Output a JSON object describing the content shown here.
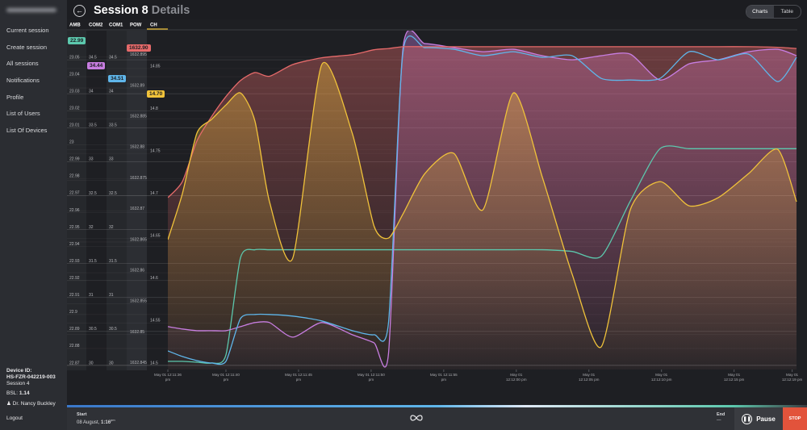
{
  "sidebar": {
    "menu": [
      "Current session",
      "Create session",
      "All sessions",
      "Notifications",
      "Profile",
      "List of Users",
      "List Of Devices"
    ],
    "device_label": "Device ID:",
    "device_id": "HS-FZR-042219-003",
    "session": "Session 4",
    "bsl_label": "BSL:",
    "bsl_value": "1.14",
    "user": "Dr. Nancy Buckley",
    "logout": "Logout"
  },
  "header": {
    "title": "Session 8",
    "subtitle": "Details",
    "tabs": [
      "Charts",
      "Table"
    ]
  },
  "chart_data": {
    "type": "line",
    "xlim": [
      36,
      79.3
    ],
    "xticks": [
      {
        "value": 36,
        "label": "May 01 12:11:36 pm"
      },
      {
        "value": 40,
        "label": "May 01 12:11:40 pm"
      },
      {
        "value": 45,
        "label": "May 01 12:11:45 pm"
      },
      {
        "value": 50,
        "label": "May 01 12:11:50 pm"
      },
      {
        "value": 55,
        "label": "May 01 12:11:55 pm"
      },
      {
        "value": 60,
        "label": "May 01 12:12:00 pm"
      },
      {
        "value": 65,
        "label": "May 01 12:12:05 pm"
      },
      {
        "value": 70,
        "label": "May 01 12:12:10 pm"
      },
      {
        "value": 75,
        "label": "May 01 12:12:15 pm"
      },
      {
        "value": 79,
        "label": "May 01 12:12:19 pm"
      }
    ],
    "x": [
      36,
      37,
      38,
      39,
      40,
      41,
      42,
      43,
      44.6,
      46.6,
      48.7,
      50.2,
      51.2,
      52.2,
      53.7,
      55.7,
      57.7,
      59.8,
      61.8,
      63.85,
      65.85,
      67.85,
      69.9,
      71.9,
      73.9,
      76,
      78,
      79.3
    ],
    "series": [
      {
        "name": "AMB",
        "color": "#5cc8ad",
        "current": 22.99,
        "ylim": [
          22.8676,
          23.0671
        ],
        "yticks": [
          23.05,
          23.04,
          23.03,
          23.02,
          23.01,
          23,
          22.99,
          22.98,
          22.97,
          22.96,
          22.95,
          22.94,
          22.93,
          22.92,
          22.91,
          22.9,
          22.89,
          22.88,
          22.87
        ],
        "values": [
          22.8724,
          22.8724,
          22.8719,
          22.8714,
          22.8762,
          22.9333,
          22.9381,
          22.9381,
          22.9381,
          22.9381,
          22.9381,
          22.9381,
          22.9381,
          22.9381,
          22.9381,
          22.9381,
          22.9381,
          22.9381,
          22.9381,
          22.9371,
          22.9343,
          22.9667,
          22.9976,
          22.9976,
          22.9976,
          22.9976,
          22.9976,
          22.9976
        ]
      },
      {
        "name": "COM2",
        "color": "#c77de0",
        "current": 34.44,
        "ylim": [
          29.94,
          34.929
        ],
        "yticks": [
          34.5,
          34,
          33.5,
          33,
          32.5,
          32,
          31.5,
          31,
          30.5,
          30
        ],
        "values": [
          30.571,
          30.536,
          30.512,
          30.512,
          30.512,
          30.571,
          30.631,
          30.631,
          30.417,
          30.631,
          30.452,
          30.333,
          30.179,
          34.679,
          34.738,
          34.679,
          34.619,
          34.655,
          34.56,
          34.5,
          34.56,
          34.583,
          34.202,
          34.44,
          34.5,
          34.619,
          34.655,
          34.56
        ]
      },
      {
        "name": "COM1",
        "color": "#5fb6ea",
        "current": 34.51,
        "ylim": [
          29.94,
          34.929
        ],
        "yticks": [
          34.5,
          34,
          33.5,
          33,
          32.5,
          32,
          31.5,
          31,
          30.5,
          30
        ],
        "values": [
          30.214,
          30.131,
          30.071,
          30.036,
          30.06,
          30.69,
          30.75,
          30.75,
          30.726,
          30.655,
          30.512,
          30.452,
          30.631,
          34.619,
          34.679,
          34.655,
          34.56,
          34.619,
          34.536,
          34.56,
          34.226,
          34.202,
          34.226,
          34.619,
          34.5,
          34.583,
          34.179,
          34.536
        ]
      },
      {
        "name": "POW",
        "color": "#e66a6a",
        "current": {
          "value": 1632.9,
          "label": "1632.90"
        },
        "ylim": [
          1632.8443,
          1632.8993
        ],
        "yticks": [
          1632.895,
          1632.89,
          1632.885,
          1632.88,
          1632.875,
          1632.87,
          1632.865,
          1632.86,
          1632.855,
          1632.85,
          1632.845
        ],
        "values": [
          1632.8722,
          1632.8748,
          1632.8814,
          1632.8853,
          1632.8886,
          1632.8912,
          1632.8925,
          1632.8919,
          1632.8938,
          1632.8949,
          1632.8954,
          1632.8962,
          1632.8964,
          1632.8967,
          1632.8967,
          1632.8967,
          1632.8967,
          1632.8967,
          1632.8967,
          1632.8967,
          1632.8967,
          1632.8967,
          1632.8967,
          1632.8967,
          1632.8967,
          1632.8967,
          1632.8966,
          1632.8964
        ]
      },
      {
        "name": "CH",
        "color": "#f0c23a",
        "current": {
          "value": 14.7,
          "label": "14.70"
        },
        "ylim": [
          14.4952,
          14.8947
        ],
        "yticks": [
          14.85,
          14.8,
          14.75,
          14.7,
          14.65,
          14.6,
          14.55,
          14.5
        ],
        "values": [
          14.6483,
          14.7025,
          14.7738,
          14.7899,
          14.807,
          14.8213,
          14.788,
          14.693,
          14.6264,
          14.8546,
          14.7738,
          14.6644,
          14.6502,
          14.6787,
          14.7262,
          14.75,
          14.6835,
          14.8213,
          14.7215,
          14.6074,
          14.5219,
          14.6835,
          14.7167,
          14.6882,
          14.6977,
          14.7262,
          14.7548,
          14.693
        ]
      }
    ]
  },
  "footer": {
    "start_label": "Start",
    "start_date": "08 August,",
    "start_time": "1:16",
    "start_period": "pm",
    "end_label": "End",
    "end_value": "—",
    "pause": "Pause",
    "stop": "STOP"
  }
}
